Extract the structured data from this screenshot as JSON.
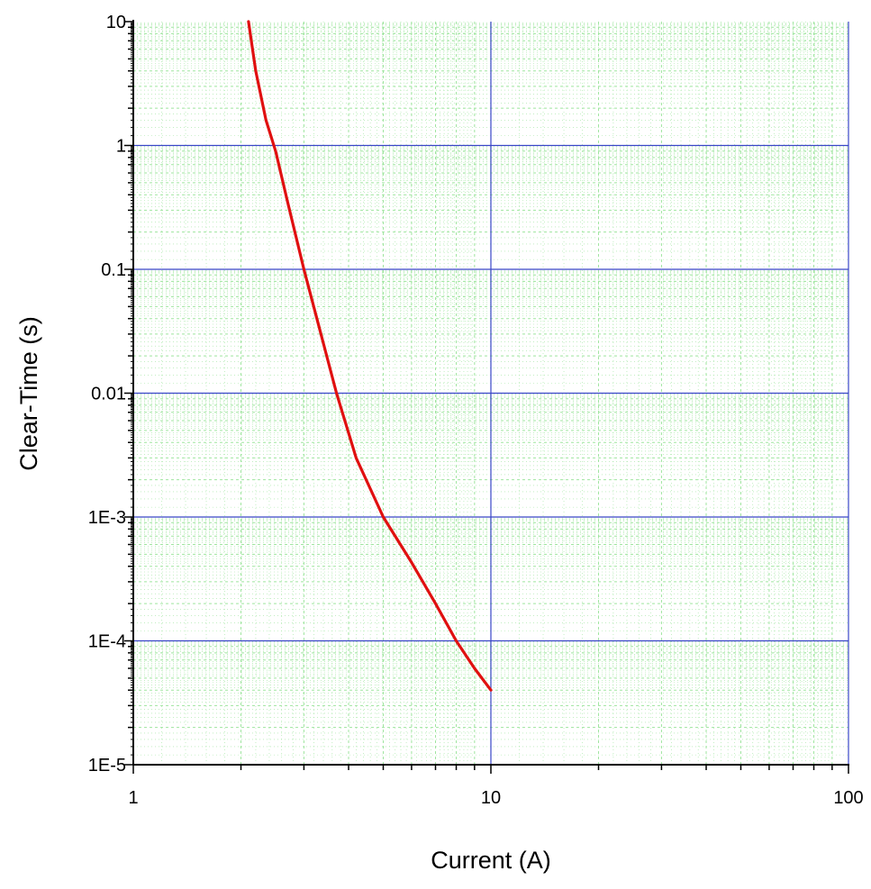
{
  "chart_data": {
    "type": "line",
    "title": "",
    "xlabel": "Current (A)",
    "ylabel": "Clear-Time (s)",
    "x_scale": "log",
    "y_scale": "log",
    "xlim": [
      1,
      100
    ],
    "ylim": [
      1e-05,
      10
    ],
    "x_ticks": [
      {
        "value": 1,
        "label": "1"
      },
      {
        "value": 10,
        "label": "10"
      },
      {
        "value": 100,
        "label": "100"
      }
    ],
    "y_ticks": [
      {
        "value": 1e-05,
        "label": "1E-5"
      },
      {
        "value": 0.0001,
        "label": "1E-4"
      },
      {
        "value": 0.001,
        "label": "1E-3"
      },
      {
        "value": 0.01,
        "label": "0.01"
      },
      {
        "value": 0.1,
        "label": "0.1"
      },
      {
        "value": 1,
        "label": "1"
      },
      {
        "value": 10,
        "label": "10"
      }
    ],
    "grid": true,
    "major_grid_color": "#3a46c8",
    "minor_grid_color": "#9fe59f",
    "series": [
      {
        "color": "#e01010",
        "x": [
          2.1,
          2.2,
          2.35,
          2.5,
          2.7,
          3.0,
          3.3,
          3.7,
          4.2,
          5.0,
          6.0,
          7.0,
          8.0,
          9.0,
          10.0
        ],
        "y": [
          10,
          4.0,
          1.6,
          0.9,
          0.35,
          0.1,
          0.035,
          0.01,
          0.003,
          0.001,
          0.00043,
          0.0002,
          0.0001,
          6e-05,
          4e-05
        ]
      }
    ]
  }
}
